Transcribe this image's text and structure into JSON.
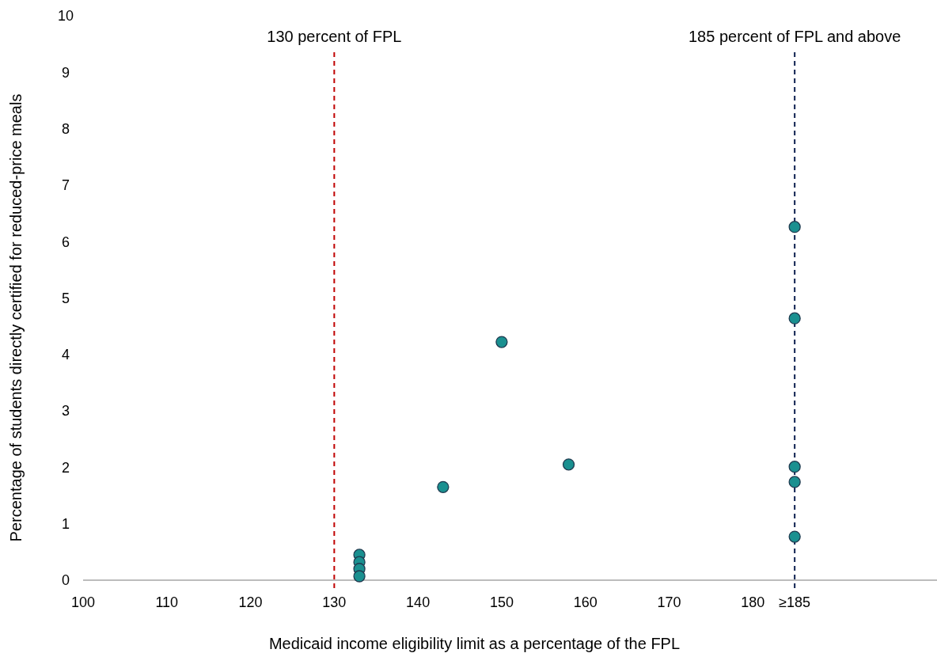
{
  "chart_data": {
    "type": "scatter",
    "xlabel": "Medicaid income eligibility limit as a percentage of the FPL",
    "ylabel": "Percentage of students directly certified for reduced-price meals",
    "x": [
      133,
      133,
      133,
      133,
      143,
      150,
      158,
      185,
      185,
      185,
      185,
      185
    ],
    "series": [
      {
        "color": "#1a9090",
        "values": [
          0.45,
          0.32,
          0.2,
          0.07,
          1.65,
          4.22,
          2.05,
          6.26,
          4.64,
          2.01,
          1.74,
          0.77
        ]
      }
    ],
    "xlim": [
      100,
      202
    ],
    "xticks": [
      100,
      110,
      120,
      130,
      140,
      150,
      160,
      170,
      180,
      {
        "value": 185,
        "label": "≥185"
      }
    ],
    "ylim": [
      0,
      10
    ],
    "yticks": [
      0,
      1,
      2,
      3,
      4,
      5,
      6,
      7,
      8,
      9,
      10
    ],
    "ref_lines": [
      {
        "axis": "x",
        "value": 130,
        "label": "130 percent of FPL",
        "color": "#c00000",
        "line_style": "dashed"
      },
      {
        "axis": "x",
        "value": 185,
        "label": "185 percent of FPL and above",
        "color": "#0d1f4f",
        "line_style": "dashed"
      }
    ],
    "marker": "circle"
  }
}
